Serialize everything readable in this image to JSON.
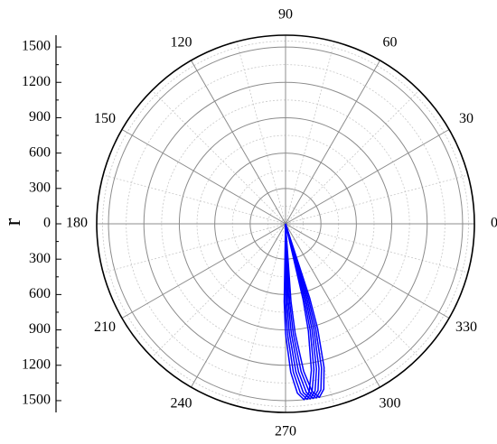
{
  "chart_data": {
    "type": "polar",
    "r_label": "r",
    "rlim": [
      0,
      1600
    ],
    "rticks": [
      0,
      300,
      600,
      900,
      1200,
      1500
    ],
    "theta_ticks": [
      0,
      30,
      60,
      90,
      120,
      150,
      180,
      210,
      240,
      270,
      300,
      330
    ],
    "grid": true,
    "series": [
      {
        "color": "#0000ff",
        "theta": [
          268,
          269,
          270,
          272,
          274,
          276,
          278,
          280,
          282,
          283,
          284
        ],
        "r": [
          0,
          660,
          930,
          1260,
          1440,
          1500,
          1440,
          1260,
          930,
          660,
          0
        ]
      },
      {
        "color": "#0000ff",
        "theta": [
          269,
          270,
          271,
          273,
          275,
          277,
          279,
          281,
          283,
          284,
          285
        ],
        "r": [
          0,
          660,
          930,
          1260,
          1440,
          1500,
          1440,
          1260,
          930,
          660,
          0
        ]
      },
      {
        "color": "#0000ff",
        "theta": [
          270,
          271,
          272,
          274,
          276,
          278,
          280,
          282,
          284,
          285,
          286
        ],
        "r": [
          0,
          660,
          930,
          1260,
          1440,
          1500,
          1440,
          1260,
          930,
          660,
          0
        ]
      },
      {
        "color": "#0000ff",
        "theta": [
          271,
          272,
          273,
          275,
          277,
          279,
          281,
          283,
          285,
          286,
          287
        ],
        "r": [
          0,
          660,
          930,
          1260,
          1440,
          1500,
          1440,
          1260,
          930,
          660,
          0
        ]
      },
      {
        "color": "#0000ff",
        "theta": [
          272,
          273,
          274,
          276,
          278,
          280,
          282,
          284,
          286,
          287,
          288
        ],
        "r": [
          0,
          660,
          930,
          1260,
          1440,
          1500,
          1440,
          1260,
          930,
          660,
          0
        ]
      },
      {
        "color": "#0000ff",
        "theta": [
          273,
          274,
          275,
          277,
          279,
          281,
          283,
          285,
          287,
          288,
          289
        ],
        "r": [
          0,
          660,
          930,
          1260,
          1440,
          1500,
          1440,
          1260,
          930,
          660,
          0
        ]
      }
    ]
  }
}
